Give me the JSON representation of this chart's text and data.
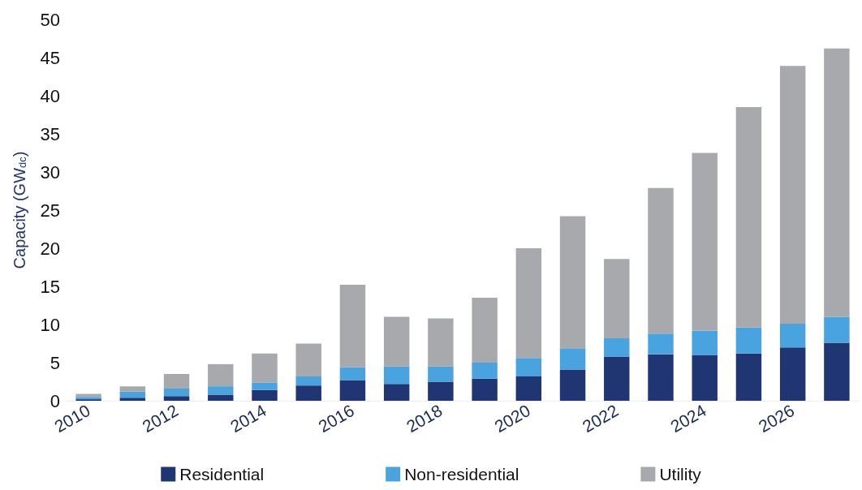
{
  "chart_data": {
    "type": "bar",
    "stacked": true,
    "categories": [
      "2010",
      null,
      "2012",
      null,
      "2014",
      null,
      "2016",
      null,
      "2018",
      null,
      "2020",
      null,
      "2022",
      null,
      "2024",
      null,
      "2026",
      null
    ],
    "ylabel": "Capacity (GW$_{dc}$)",
    "ylim": [
      0,
      50
    ],
    "yticks": [
      0,
      5,
      10,
      15,
      20,
      25,
      30,
      35,
      40,
      45,
      50
    ],
    "grid": false,
    "legend": "bottom",
    "series": [
      {
        "name": "Residential",
        "color": "#1f3672",
        "values": [
          0.2,
          0.4,
          0.6,
          0.8,
          1.4,
          2.0,
          2.7,
          2.2,
          2.5,
          2.9,
          3.2,
          4.1,
          5.8,
          6.1,
          6.0,
          6.2,
          7.0,
          7.6
        ]
      },
      {
        "name": "Non-residential",
        "color": "#48a3df",
        "values": [
          0.3,
          0.8,
          1.0,
          1.1,
          1.0,
          1.2,
          1.7,
          2.3,
          2.0,
          2.1,
          2.4,
          2.8,
          2.4,
          2.7,
          3.2,
          3.4,
          3.1,
          3.4
        ]
      },
      {
        "name": "Utility",
        "color": "#a8a9ad",
        "values": [
          0.4,
          0.7,
          1.9,
          2.9,
          3.8,
          4.3,
          10.8,
          6.5,
          6.3,
          8.5,
          14.4,
          17.3,
          10.4,
          19.1,
          23.3,
          28.9,
          33.8,
          35.2
        ]
      }
    ]
  }
}
